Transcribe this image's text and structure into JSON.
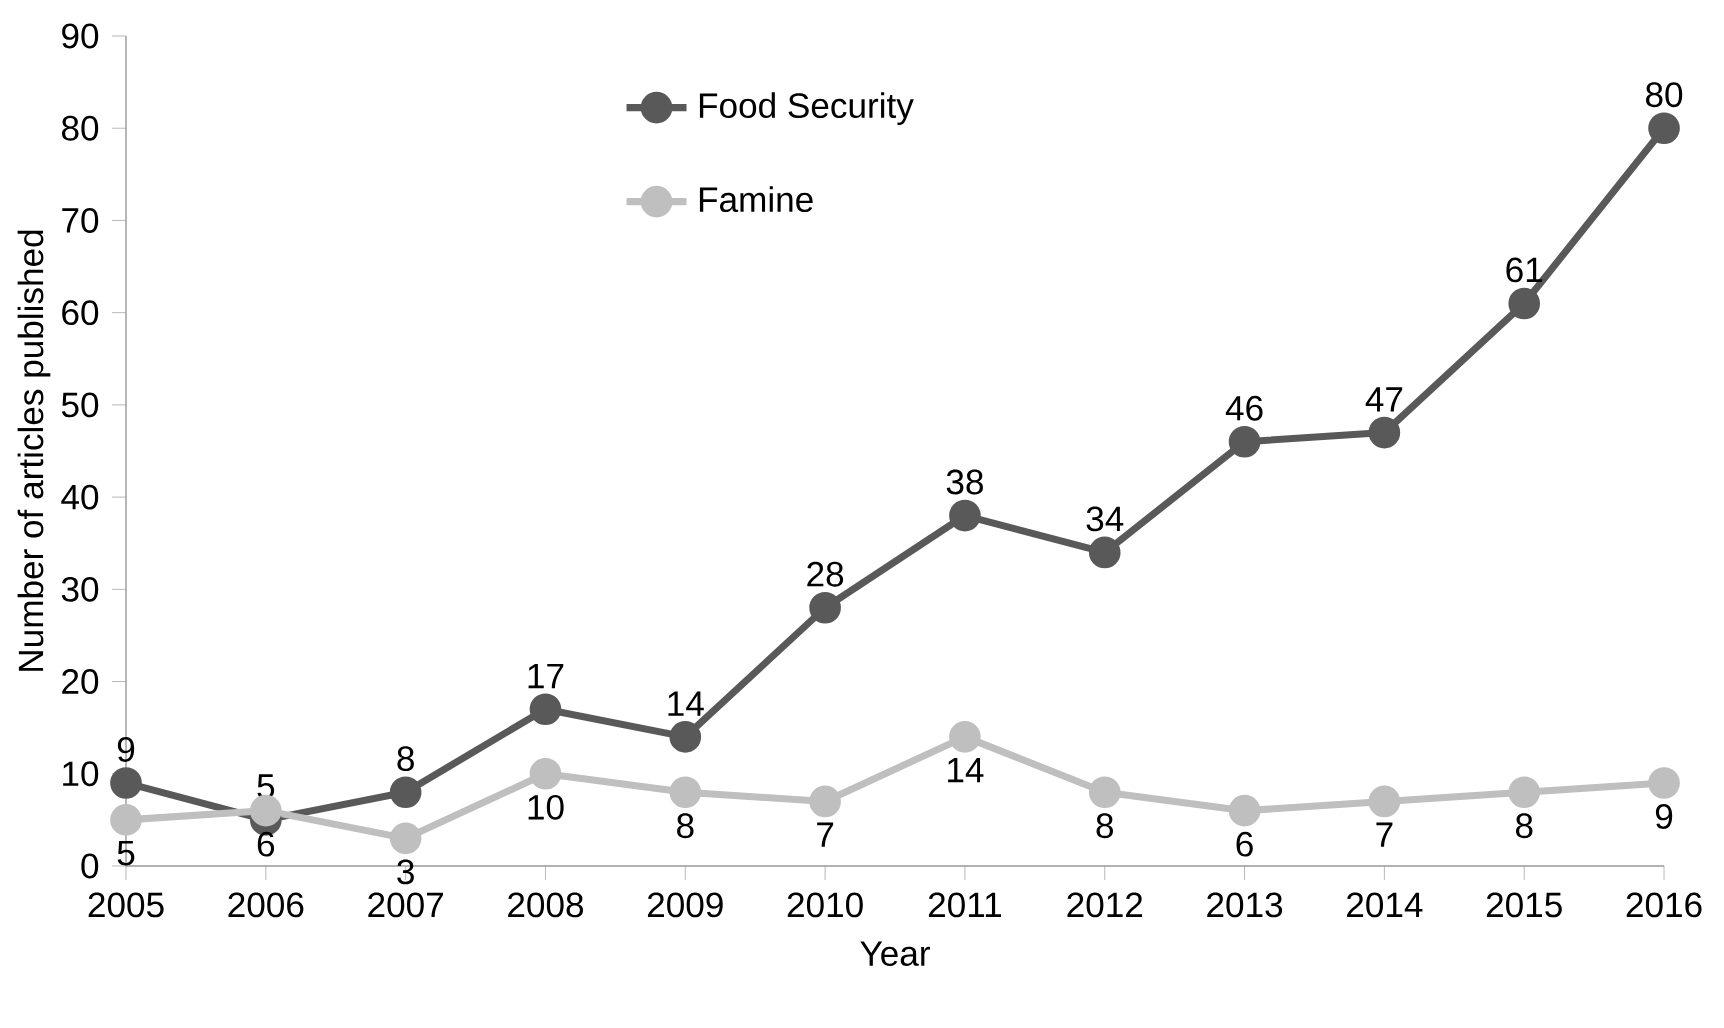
{
  "chart_data": {
    "type": "line",
    "xlabel": "Year",
    "ylabel": "Number of articles published",
    "x": [
      2005,
      2006,
      2007,
      2008,
      2009,
      2010,
      2011,
      2012,
      2013,
      2014,
      2015,
      2016
    ],
    "series": [
      {
        "name": "Food Security",
        "color": "#595959",
        "values": [
          9,
          5,
          8,
          17,
          14,
          28,
          38,
          34,
          46,
          47,
          61,
          80
        ]
      },
      {
        "name": "Famine",
        "color": "#bfbfbf",
        "values": [
          5,
          6,
          3,
          10,
          8,
          7,
          14,
          8,
          6,
          7,
          8,
          9
        ]
      }
    ],
    "xlim": [
      2005,
      2016
    ],
    "xticks": [
      2005,
      2006,
      2007,
      2008,
      2009,
      2010,
      2011,
      2012,
      2013,
      2014,
      2015,
      2016
    ],
    "ylim": [
      0,
      90
    ],
    "yticks": [
      0,
      10,
      20,
      30,
      40,
      50,
      60,
      70,
      80,
      90
    ],
    "grid": false,
    "legend": "top",
    "marker": "circle",
    "line_style": "solid",
    "data_labels": true
  }
}
